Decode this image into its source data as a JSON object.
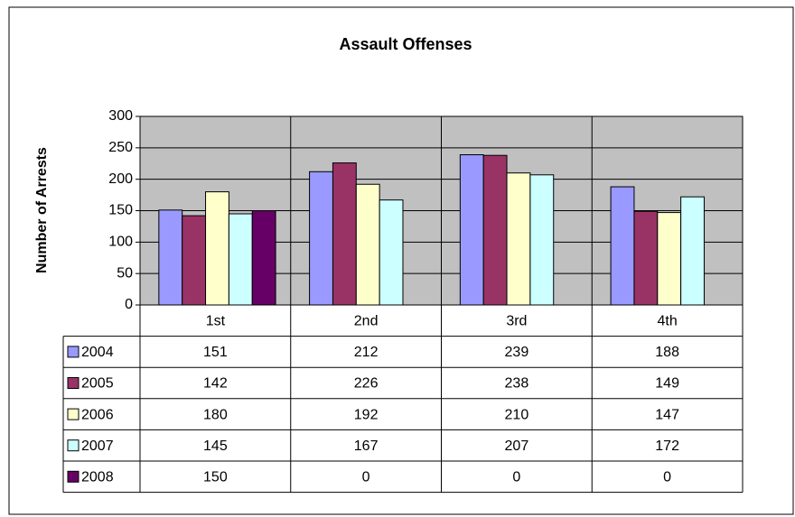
{
  "chart_data": {
    "type": "bar",
    "title": "Assault Offenses",
    "y_label": "Number of Arrests",
    "categories": [
      "1st",
      "2nd",
      "3rd",
      "4th"
    ],
    "series": [
      {
        "name": "2004",
        "color": "#9999ff",
        "values": [
          151,
          212,
          239,
          188
        ]
      },
      {
        "name": "2005",
        "color": "#993366",
        "values": [
          142,
          226,
          238,
          149
        ]
      },
      {
        "name": "2006",
        "color": "#ffffcc",
        "values": [
          180,
          192,
          210,
          147
        ]
      },
      {
        "name": "2007",
        "color": "#ccffff",
        "values": [
          145,
          167,
          207,
          172
        ]
      },
      {
        "name": "2008",
        "color": "#660066",
        "values": [
          150,
          0,
          0,
          0
        ]
      }
    ],
    "ylim": [
      0,
      300
    ],
    "yticks": [
      0,
      50,
      100,
      150,
      200,
      250,
      300
    ],
    "grid": true,
    "plot_background": "#c0c0c0"
  }
}
